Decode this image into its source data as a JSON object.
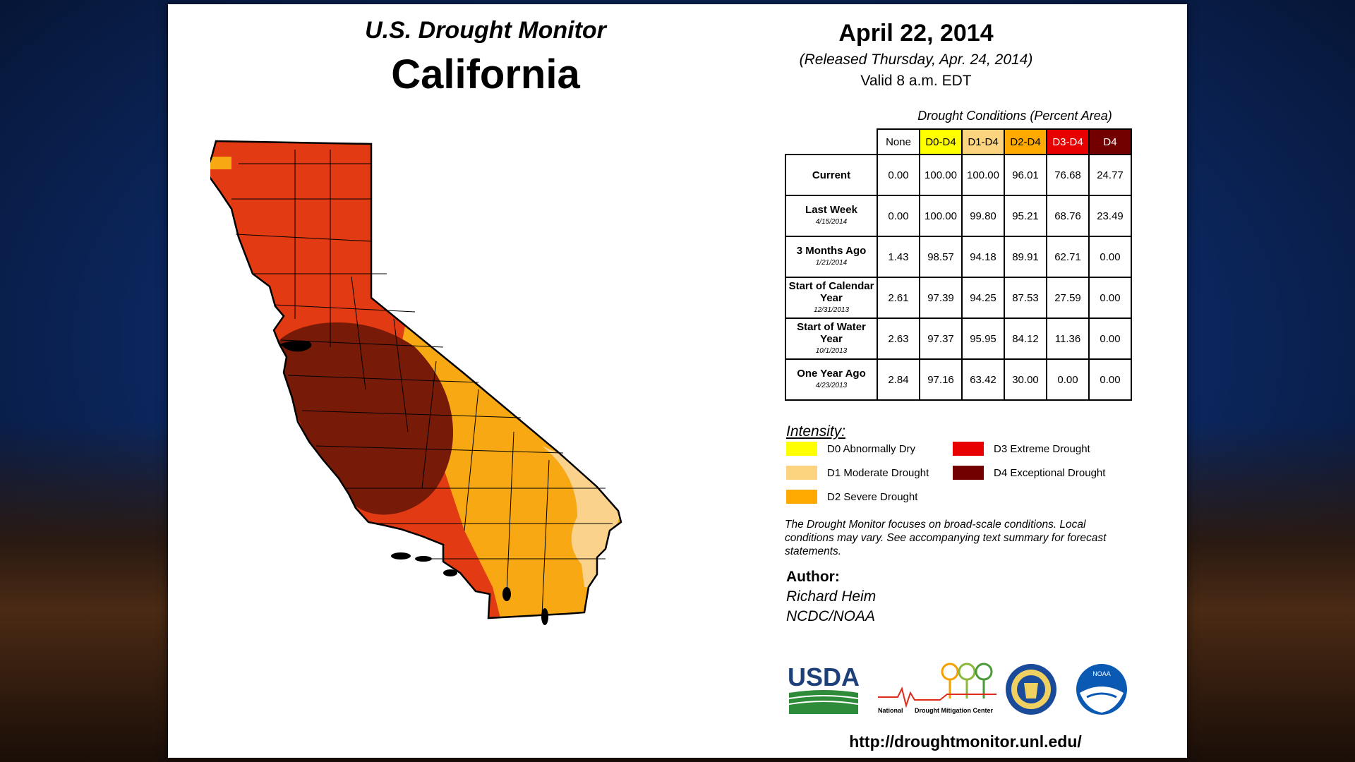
{
  "header": {
    "title": "U.S. Drought Monitor",
    "state": "California",
    "date": "April 22, 2014",
    "released": "(Released Thursday, Apr. 24, 2014)",
    "valid": "Valid 8 a.m. EDT"
  },
  "table": {
    "caption": "Drought Conditions (Percent Area)",
    "columns": [
      "None",
      "D0-D4",
      "D1-D4",
      "D2-D4",
      "D3-D4",
      "D4"
    ],
    "rows": [
      {
        "label": "Current",
        "sub": "",
        "values": [
          "0.00",
          "100.00",
          "100.00",
          "96.01",
          "76.68",
          "24.77"
        ]
      },
      {
        "label": "Last Week",
        "sub": "4/15/2014",
        "values": [
          "0.00",
          "100.00",
          "99.80",
          "95.21",
          "68.76",
          "23.49"
        ]
      },
      {
        "label": "3 Months Ago",
        "sub": "1/21/2014",
        "values": [
          "1.43",
          "98.57",
          "94.18",
          "89.91",
          "62.71",
          "0.00"
        ]
      },
      {
        "label": "Start of Calendar Year",
        "sub": "12/31/2013",
        "values": [
          "2.61",
          "97.39",
          "94.25",
          "87.53",
          "27.59",
          "0.00"
        ]
      },
      {
        "label": "Start of Water Year",
        "sub": "10/1/2013",
        "values": [
          "2.63",
          "97.37",
          "95.95",
          "84.12",
          "11.36",
          "0.00"
        ]
      },
      {
        "label": "One Year Ago",
        "sub": "4/23/2013",
        "values": [
          "2.84",
          "97.16",
          "63.42",
          "30.00",
          "0.00",
          "0.00"
        ]
      }
    ]
  },
  "legend": {
    "title": "Intensity:",
    "items": [
      {
        "label": "D0 Abnormally Dry",
        "color": "#ffff00"
      },
      {
        "label": "D1 Moderate Drought",
        "color": "#fcd37f"
      },
      {
        "label": "D2 Severe Drought",
        "color": "#ffaa00"
      },
      {
        "label": "D3 Extreme Drought",
        "color": "#e60000"
      },
      {
        "label": "D4 Exceptional Drought",
        "color": "#730000"
      }
    ]
  },
  "note": "The Drought Monitor focuses on broad-scale conditions. Local conditions may vary. See accompanying text summary for forecast statements.",
  "author": {
    "label": "Author:",
    "name": "Richard Heim",
    "org": "NCDC/NOAA"
  },
  "logos": {
    "usda": "USDA",
    "ndmc_line1": "National",
    "ndmc_line2": "Drought Mitigation Center",
    "doc_seal": "dept-of-commerce-seal",
    "noaa": "NOAA"
  },
  "url": "http://droughtmonitor.unl.edu/",
  "colors": {
    "d0": "#ffff00",
    "d1": "#fcd37f",
    "d2": "#ffaa00",
    "d3": "#e60000",
    "d4": "#730000",
    "map_d3": "#e23a12",
    "map_d2": "#f7a812",
    "map_d1": "#fbd28c",
    "map_d4": "#781a08"
  }
}
